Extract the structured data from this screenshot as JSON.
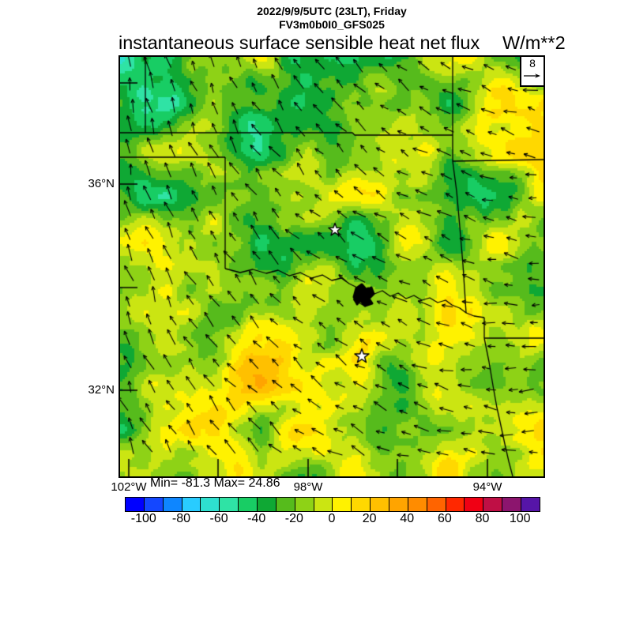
{
  "header": {
    "datetime": "2022/9/9/5UTC (23LT), Friday",
    "model": "FV3m0b0I0_GFS025"
  },
  "title": {
    "text": "instantaneous surface sensible heat net flux",
    "units": "W/m**2"
  },
  "map": {
    "annotation_text": "Min= -81.3 Max= 24.86",
    "lat_labels": [
      "36°N",
      "32°N"
    ],
    "lon_labels": [
      "102°W",
      "98°W",
      "94°W"
    ],
    "reference_vector": {
      "label": "8",
      "arrow_icon": "right-arrow"
    }
  },
  "colorbar": {
    "tick_labels": [
      "-100",
      "-80",
      "-60",
      "-40",
      "-20",
      "0",
      "20",
      "40",
      "60",
      "80",
      "100"
    ],
    "cell_colors": [
      "#0000ff",
      "#1447ff",
      "#0e86ff",
      "#29ccff",
      "#2ee0cf",
      "#2fe3a5",
      "#18cd64",
      "#0fa834",
      "#56bb1c",
      "#8ed216",
      "#cbe512",
      "#fff200",
      "#ffd800",
      "#ffc000",
      "#ffa400",
      "#ff8c00",
      "#ff6400",
      "#ff2800",
      "#f00014",
      "#bf0f45",
      "#8c156e",
      "#5615a8"
    ]
  },
  "chart_data": {
    "type": "heatmap",
    "title": "instantaneous surface sensible heat net flux",
    "units": "W/m**2",
    "valid_time": "2022/9/9/5UTC (23LT), Friday",
    "model_run": "FV3m0b0I0_GFS025",
    "field_min": -81.3,
    "field_max": 24.86,
    "x_tick_labels": [
      "102°W",
      "98°W",
      "94°W"
    ],
    "y_tick_labels": [
      "36°N",
      "32°N"
    ],
    "approx_region": {
      "lon_west_deg": [
        102.3,
        92.9
      ],
      "lat_north_deg": [
        30.3,
        38.5
      ]
    },
    "colorbar": {
      "value_range": [
        -110,
        110
      ],
      "cell_width_value": 10,
      "tick_labels": [
        -100,
        -80,
        -60,
        -40,
        -20,
        0,
        20,
        40,
        60,
        80,
        100
      ],
      "cell_colors": [
        "#0000ff",
        "#1447ff",
        "#0e86ff",
        "#29ccff",
        "#2ee0cf",
        "#2fe3a5",
        "#18cd64",
        "#0fa834",
        "#56bb1c",
        "#8ed216",
        "#cbe512",
        "#fff200",
        "#ffd800",
        "#ffc000",
        "#ffa400",
        "#ff8c00",
        "#ff6400",
        "#ff2800",
        "#f00014",
        "#bf0f45",
        "#8c156e",
        "#5615a8"
      ]
    },
    "wind_reference_vector": {
      "magnitude": 8,
      "direction": "east-pointing sample arrow"
    },
    "flow_summary": "black wind arrows on regular grid: northerly flow in the northwest, turning westerly to southwesterly toward the east and southeast",
    "field_summary": "mostly -20 to 0 W/m**2 (yellow-green) over the south and east; -30 to -70 (greens to teal/cyan) over the northwest and in scattered patches; small 0 to +25 (yellow/orange) spots near the southern star marker",
    "markers": [
      {
        "type": "star",
        "approx_lon": "97.4°W",
        "approx_lat": "35.2°N"
      },
      {
        "type": "star",
        "approx_lon": "96.8°W",
        "approx_lat": "32.7°N"
      }
    ],
    "map_overlays": [
      "state borders (OK/KS/TX/MO/AR/LA)",
      "Red River with lake shown as black blob"
    ]
  }
}
